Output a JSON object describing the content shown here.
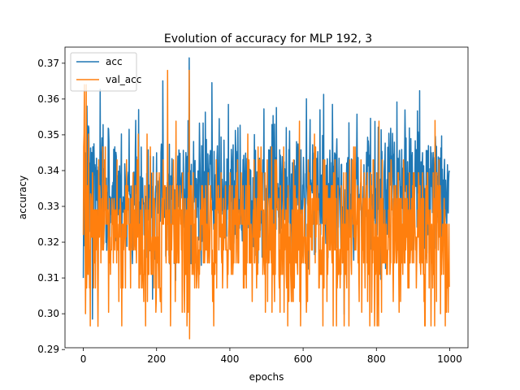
{
  "chart_data": {
    "type": "line",
    "title": "Evolution of accuracy for MLP 192, 3",
    "xlabel": "epochs",
    "ylabel": "accuracy",
    "xlim": [
      -50,
      1050
    ],
    "ylim": [
      0.2905,
      0.3745
    ],
    "xticks": [
      0,
      200,
      400,
      600,
      800,
      1000
    ],
    "yticks": [
      0.29,
      0.3,
      0.31,
      0.32,
      0.33,
      0.34,
      0.35,
      0.36,
      0.37
    ],
    "ytick_labels": [
      "0.29",
      "0.30",
      "0.31",
      "0.32",
      "0.33",
      "0.34",
      "0.35",
      "0.36",
      "0.37"
    ],
    "grid": false,
    "legend_location": "upper-left",
    "n_points": 1000,
    "series": [
      {
        "name": "acc",
        "color": "#1f77b4",
        "mean": 0.334,
        "low": 0.2985,
        "high": 0.3715,
        "generator": "noisy",
        "seed": 7,
        "spread": 0.0095,
        "anchors": [
          [
            0,
            0.31
          ],
          [
            2,
            0.319
          ],
          [
            5,
            0.345
          ],
          [
            10,
            0.358
          ],
          [
            15,
            0.352
          ],
          [
            25,
            0.2985
          ],
          [
            50,
            0.345
          ],
          [
            100,
            0.335
          ],
          [
            200,
            0.345
          ],
          [
            289,
            0.3715
          ],
          [
            400,
            0.33
          ],
          [
            500,
            0.335
          ],
          [
            600,
            0.335
          ],
          [
            700,
            0.335
          ],
          [
            800,
            0.335
          ],
          [
            900,
            0.335
          ],
          [
            950,
            0.345
          ],
          [
            999,
            0.34
          ]
        ]
      },
      {
        "name": "val_acc",
        "color": "#ff7f0e",
        "mean": 0.322,
        "low": 0.293,
        "high": 0.368,
        "generator": "discrete",
        "seed": 13,
        "levels": [
          0.2966,
          0.3004,
          0.3034,
          0.3072,
          0.311,
          0.3142,
          0.3178,
          0.3214,
          0.325,
          0.329,
          0.3322,
          0.3358,
          0.3394,
          0.343,
          0.3466,
          0.3502,
          0.3538,
          0.357
        ],
        "anchors": [
          [
            0,
            0.322
          ],
          [
            3,
            0.364
          ],
          [
            6,
            0.3
          ],
          [
            8,
            0.364
          ],
          [
            20,
            0.3335
          ],
          [
            40,
            0.2965
          ],
          [
            100,
            0.322
          ],
          [
            170,
            0.2966
          ],
          [
            230,
            0.368
          ],
          [
            289,
            0.368
          ],
          [
            290,
            0.293
          ],
          [
            400,
            0.318
          ],
          [
            500,
            0.318
          ],
          [
            600,
            0.318
          ],
          [
            700,
            0.318
          ],
          [
            800,
            0.318
          ],
          [
            960,
            0.354
          ],
          [
            975,
            0.3
          ],
          [
            999,
            0.3075
          ]
        ]
      }
    ]
  }
}
